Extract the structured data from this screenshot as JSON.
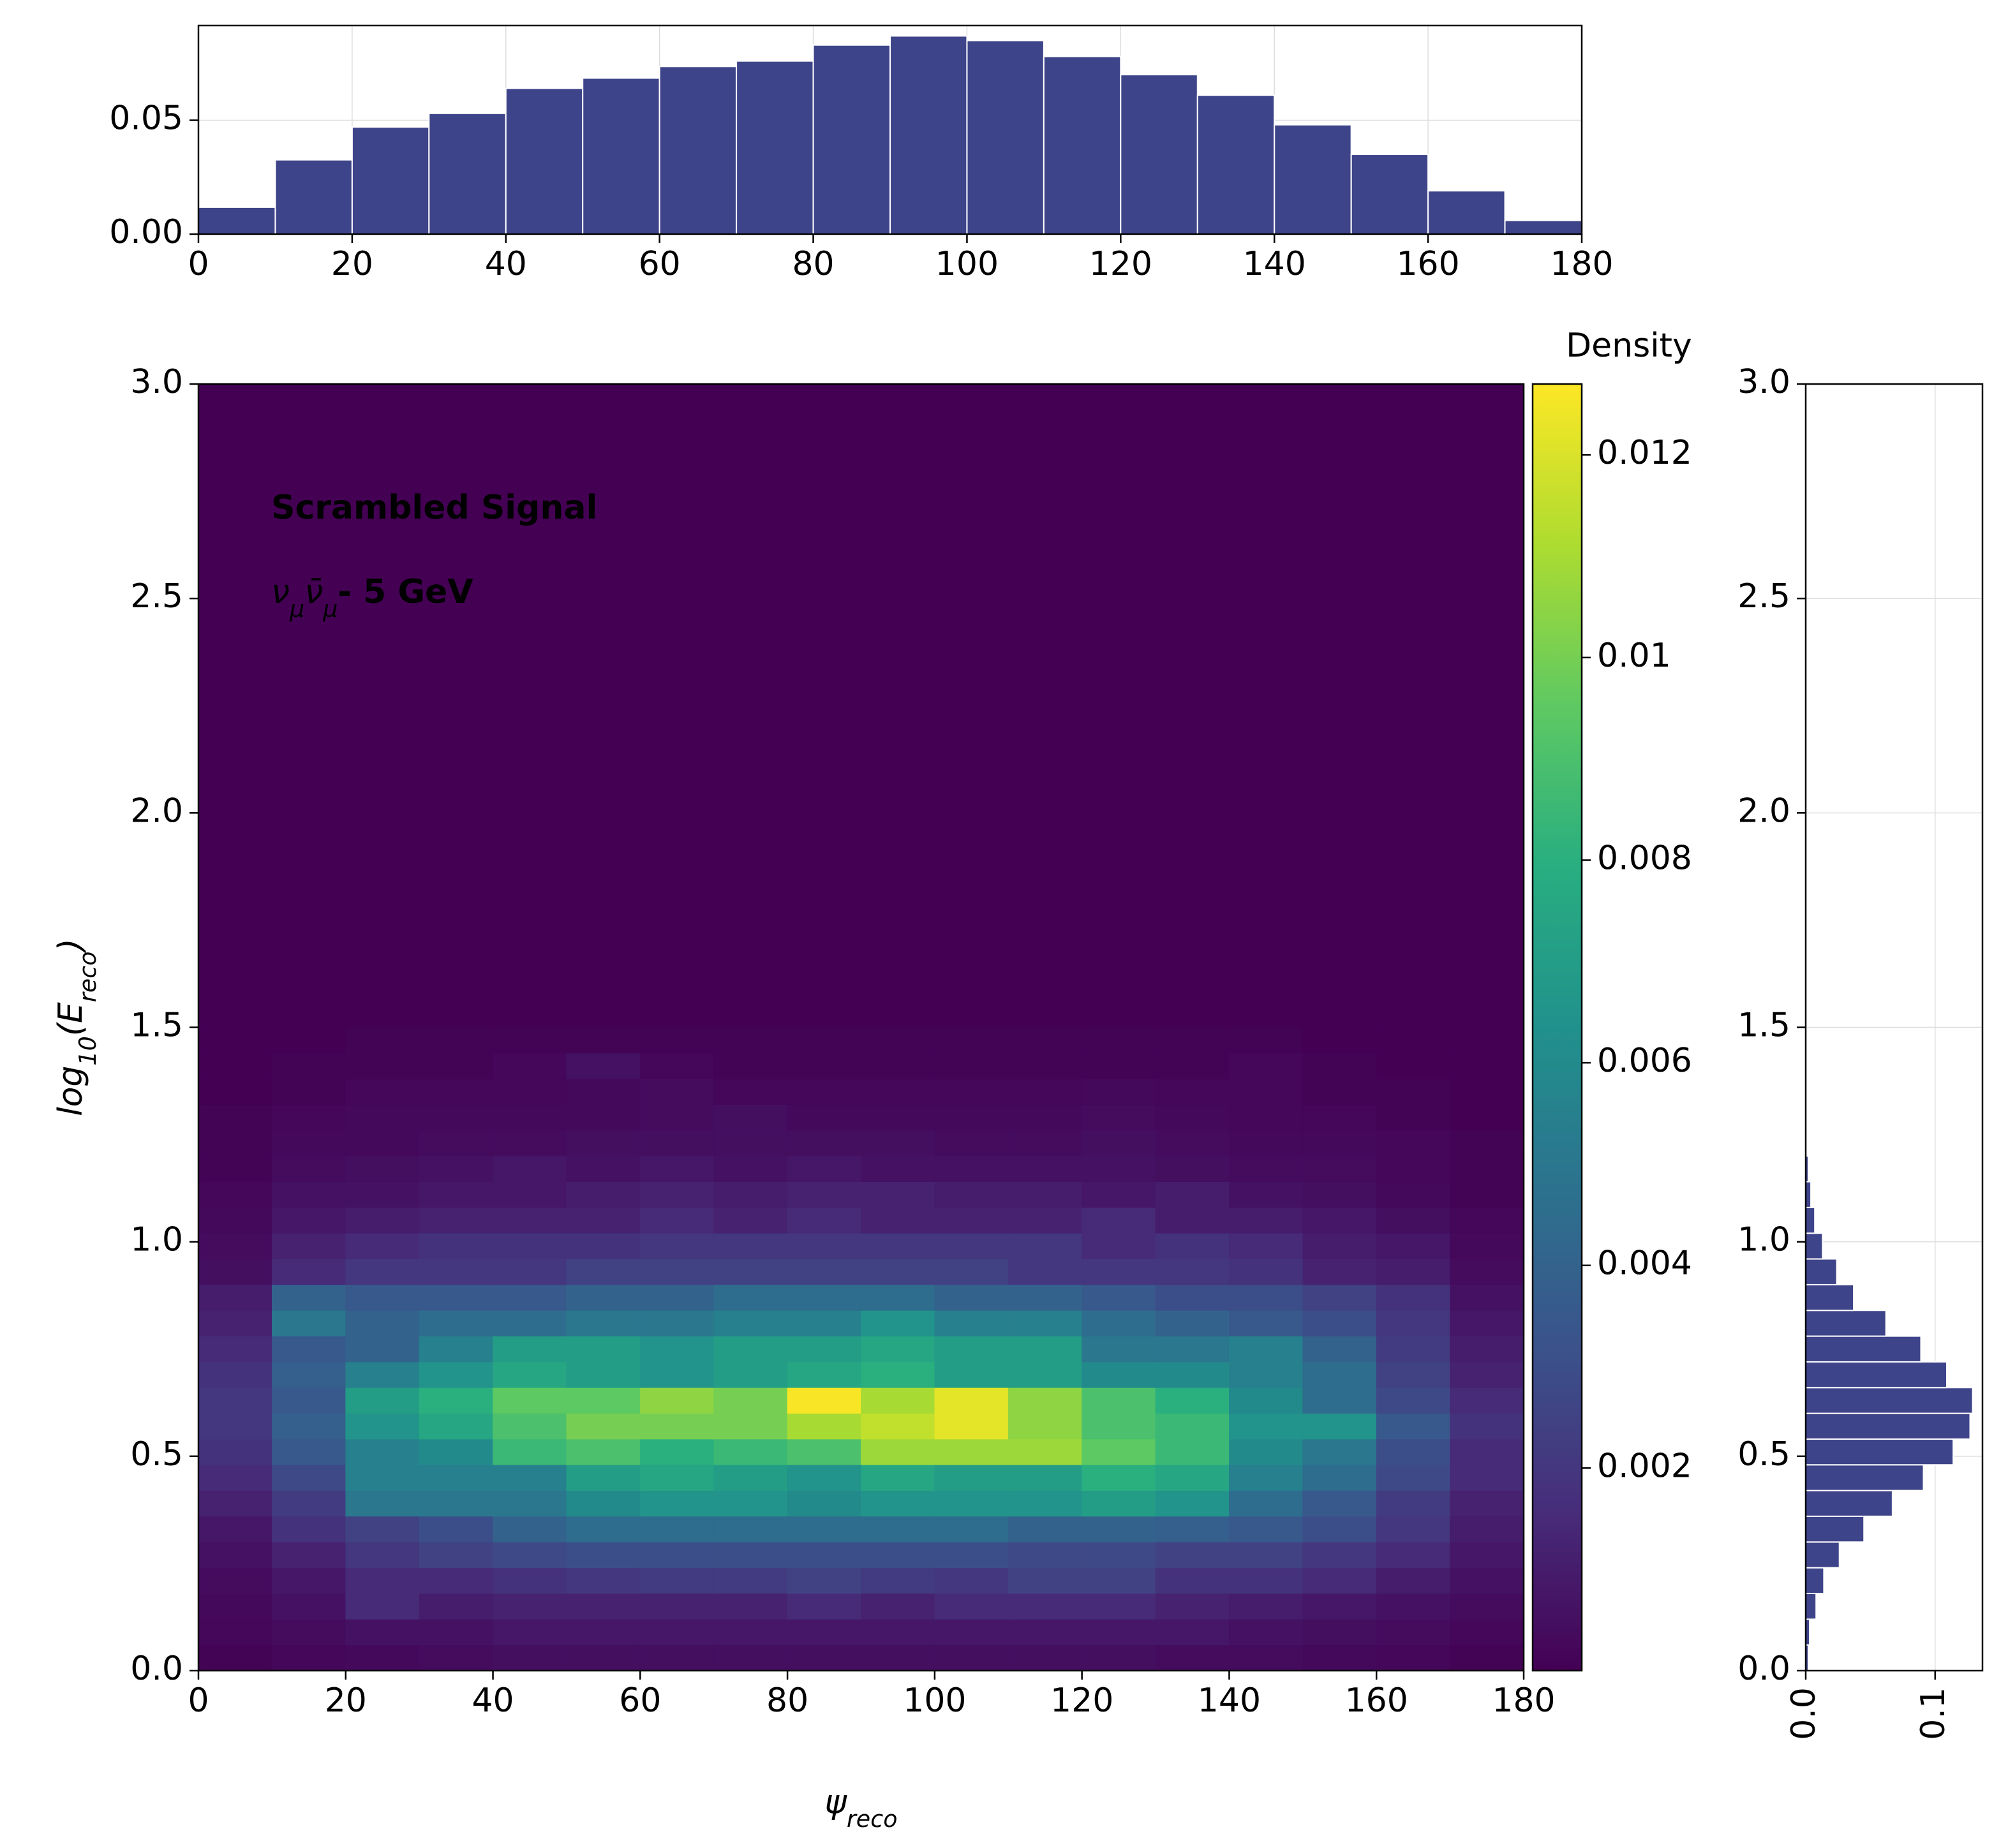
{
  "chart_data": [
    {
      "type": "heatmap",
      "title": "Scrambled Signal",
      "subtitle": [
        {
          "text": "ν",
          "math": true
        },
        {
          "text": "μ",
          "math": true,
          "sub": true
        },
        {
          "text": "ν̄",
          "math": true
        },
        {
          "text": "μ",
          "math": true,
          "sub": true
        },
        {
          "text": "- 5 GeV"
        }
      ],
      "xlabel": [
        {
          "text": "ψ"
        },
        {
          "text": "reco",
          "sub": true
        }
      ],
      "ylabel": [
        {
          "text": "log"
        },
        {
          "text": "10",
          "sub": true
        },
        {
          "text": "(E"
        },
        {
          "text": "reco",
          "sub": true
        },
        {
          "text": ")"
        }
      ],
      "xbins": [
        0,
        10,
        20,
        30,
        40,
        50,
        60,
        70,
        80,
        90,
        100,
        110,
        120,
        130,
        140,
        150,
        160,
        170,
        180
      ],
      "ybins": [
        0,
        0.06,
        0.12,
        0.18,
        0.24,
        0.3,
        0.36,
        0.42,
        0.48,
        0.54,
        0.6,
        0.66,
        0.72,
        0.78,
        0.84,
        0.9,
        0.96,
        1.02,
        1.08,
        1.14,
        1.2,
        1.26,
        1.32,
        1.38,
        1.44,
        1.5
      ],
      "z": [
        [
          0.0001,
          0.0002,
          0.0003,
          0.0004,
          0.0005,
          0.0005,
          0.0005,
          0.0005,
          0.0005,
          0.0005,
          0.0005,
          0.0005,
          0.0005,
          0.0004,
          0.0004,
          0.0003,
          0.0002,
          0.0001
        ],
        [
          0.0002,
          0.0004,
          0.0006,
          0.0006,
          0.0008,
          0.0008,
          0.0008,
          0.0008,
          0.0008,
          0.0008,
          0.0008,
          0.0008,
          0.0008,
          0.0008,
          0.0006,
          0.0005,
          0.0004,
          0.0002
        ],
        [
          0.0003,
          0.0006,
          0.0015,
          0.001,
          0.0012,
          0.0012,
          0.0012,
          0.0012,
          0.0015,
          0.0012,
          0.0015,
          0.0015,
          0.0015,
          0.0012,
          0.001,
          0.0008,
          0.0006,
          0.0004
        ],
        [
          0.0004,
          0.0008,
          0.0015,
          0.0015,
          0.0018,
          0.002,
          0.0022,
          0.0022,
          0.0025,
          0.0022,
          0.002,
          0.0025,
          0.0025,
          0.0018,
          0.0018,
          0.0015,
          0.001,
          0.0006
        ],
        [
          0.0006,
          0.0012,
          0.002,
          0.0025,
          0.0028,
          0.003,
          0.003,
          0.003,
          0.003,
          0.003,
          0.003,
          0.0028,
          0.0028,
          0.0025,
          0.0025,
          0.002,
          0.0015,
          0.0008
        ],
        [
          0.0008,
          0.0018,
          0.0025,
          0.003,
          0.004,
          0.0045,
          0.0045,
          0.0045,
          0.0045,
          0.0045,
          0.0045,
          0.004,
          0.004,
          0.0038,
          0.0035,
          0.003,
          0.002,
          0.001
        ],
        [
          0.0012,
          0.0022,
          0.005,
          0.005,
          0.005,
          0.006,
          0.0065,
          0.0065,
          0.006,
          0.0065,
          0.0065,
          0.0065,
          0.007,
          0.0065,
          0.0045,
          0.0035,
          0.0022,
          0.0012
        ],
        [
          0.0015,
          0.0028,
          0.0055,
          0.0055,
          0.0055,
          0.007,
          0.0075,
          0.007,
          0.0065,
          0.0075,
          0.007,
          0.007,
          0.008,
          0.0075,
          0.0055,
          0.0045,
          0.0028,
          0.0015
        ],
        [
          0.0018,
          0.0035,
          0.0055,
          0.006,
          0.0085,
          0.009,
          0.008,
          0.0085,
          0.009,
          0.0108,
          0.0108,
          0.0108,
          0.0095,
          0.0085,
          0.006,
          0.005,
          0.003,
          0.0015
        ],
        [
          0.002,
          0.0038,
          0.0065,
          0.0075,
          0.009,
          0.01,
          0.01,
          0.01,
          0.011,
          0.0115,
          0.0122,
          0.0105,
          0.009,
          0.0085,
          0.0065,
          0.0065,
          0.0035,
          0.0018
        ],
        [
          0.002,
          0.0035,
          0.007,
          0.008,
          0.0095,
          0.0095,
          0.0105,
          0.01,
          0.0126,
          0.011,
          0.0122,
          0.0105,
          0.009,
          0.008,
          0.006,
          0.0045,
          0.0028,
          0.0015
        ],
        [
          0.0018,
          0.0038,
          0.0055,
          0.0065,
          0.0075,
          0.007,
          0.0065,
          0.007,
          0.0075,
          0.008,
          0.007,
          0.007,
          0.006,
          0.006,
          0.0055,
          0.0045,
          0.0025,
          0.0012
        ],
        [
          0.0015,
          0.0035,
          0.004,
          0.0055,
          0.007,
          0.007,
          0.0065,
          0.007,
          0.007,
          0.0075,
          0.007,
          0.007,
          0.005,
          0.005,
          0.0055,
          0.004,
          0.0022,
          0.001
        ],
        [
          0.0012,
          0.005,
          0.004,
          0.0045,
          0.0045,
          0.005,
          0.005,
          0.0055,
          0.0055,
          0.0065,
          0.0055,
          0.0055,
          0.0045,
          0.004,
          0.0035,
          0.003,
          0.002,
          0.0008
        ],
        [
          0.001,
          0.004,
          0.0035,
          0.0035,
          0.0035,
          0.004,
          0.004,
          0.0045,
          0.0045,
          0.0045,
          0.004,
          0.004,
          0.0035,
          0.003,
          0.003,
          0.0025,
          0.0018,
          0.0006
        ],
        [
          0.0005,
          0.0015,
          0.002,
          0.002,
          0.002,
          0.0025,
          0.0025,
          0.0025,
          0.0025,
          0.0025,
          0.0025,
          0.002,
          0.002,
          0.002,
          0.0018,
          0.0012,
          0.001,
          0.0004
        ],
        [
          0.0004,
          0.0012,
          0.0015,
          0.0018,
          0.0018,
          0.0018,
          0.002,
          0.002,
          0.002,
          0.002,
          0.002,
          0.002,
          0.0015,
          0.0018,
          0.0015,
          0.001,
          0.0008,
          0.0003
        ],
        [
          0.0003,
          0.0008,
          0.001,
          0.0012,
          0.0012,
          0.0012,
          0.0015,
          0.0012,
          0.0015,
          0.0012,
          0.0012,
          0.0012,
          0.0015,
          0.001,
          0.001,
          0.0008,
          0.0005,
          0.0002
        ],
        [
          0.0002,
          0.0006,
          0.0006,
          0.0008,
          0.0008,
          0.001,
          0.0012,
          0.001,
          0.0012,
          0.0012,
          0.001,
          0.001,
          0.0008,
          0.001,
          0.0006,
          0.0005,
          0.0003,
          0.0001
        ],
        [
          0.0001,
          0.0004,
          0.0005,
          0.0006,
          0.0008,
          0.0006,
          0.0008,
          0.0006,
          0.0008,
          0.0006,
          0.0006,
          0.0006,
          0.0006,
          0.0005,
          0.0004,
          0.0004,
          0.0002,
          0.0001
        ],
        [
          0.0001,
          0.0003,
          0.0003,
          0.0004,
          0.0004,
          0.0005,
          0.0005,
          0.0005,
          0.0005,
          0.0005,
          0.0004,
          0.0004,
          0.0005,
          0.0004,
          0.0003,
          0.0003,
          0.0002,
          0.0001
        ],
        [
          0.0001,
          0.0002,
          0.0003,
          0.0003,
          0.0003,
          0.0003,
          0.0004,
          0.0005,
          0.0003,
          0.0003,
          0.0003,
          0.0003,
          0.0004,
          0.0003,
          0.0002,
          0.0002,
          0.0001,
          0
        ],
        [
          0,
          0.0001,
          0.0002,
          0.0002,
          0.0002,
          0.0003,
          0.0004,
          0.0002,
          0.0002,
          0.0002,
          0.0002,
          0.0002,
          0.0003,
          0.0002,
          0.0002,
          0.0001,
          0.0001,
          0
        ],
        [
          0,
          0.0001,
          0.0001,
          0.0001,
          0.0002,
          0.0006,
          0.0002,
          0.0001,
          0.0001,
          0.0001,
          0.0001,
          0.0001,
          0.0001,
          0.0001,
          0.0002,
          0.0001,
          0,
          0
        ],
        [
          0,
          0,
          0.0001,
          0.0001,
          0.0001,
          0.0001,
          0.0001,
          0.0001,
          0.0001,
          0.0001,
          0.0001,
          0.0001,
          0.0001,
          0.0001,
          0.0001,
          0,
          0,
          0
        ]
      ],
      "xlim": [
        0,
        180
      ],
      "ylim": [
        0,
        3
      ],
      "xticks": [
        0,
        20,
        40,
        60,
        80,
        100,
        120,
        140,
        160,
        180
      ],
      "yticks": [
        {
          "value": 0,
          "label": "0.0"
        },
        0.5,
        {
          "value": 1,
          "label": "1.0"
        },
        1.5,
        {
          "value": 2,
          "label": "2.0"
        },
        2.5,
        {
          "value": 3,
          "label": "3.0"
        }
      ],
      "colormap": "viridis",
      "clim": [
        0,
        0.0127
      ],
      "colorbar_label": "Density",
      "colorbar_ticks": [
        0.002,
        0.004,
        0.006,
        0.008,
        0.01,
        0.012
      ]
    },
    {
      "type": "histogram",
      "bins": [
        0,
        10,
        20,
        30,
        40,
        50,
        60,
        70,
        80,
        90,
        100,
        110,
        120,
        130,
        140,
        150,
        160,
        170,
        180
      ],
      "values": [
        0.0118,
        0.0326,
        0.047,
        0.053,
        0.064,
        0.0685,
        0.0736,
        0.076,
        0.083,
        0.087,
        0.085,
        0.078,
        0.07,
        0.061,
        0.048,
        0.035,
        0.019,
        0.006
      ],
      "color": "#3e4489",
      "xlim": [
        0,
        180
      ],
      "ylim": [
        0,
        0.0916
      ],
      "xticks": [
        0,
        20,
        40,
        60,
        80,
        100,
        120,
        140,
        160,
        180
      ],
      "yticks": [
        {
          "value": 0,
          "label": "0.00"
        },
        {
          "value": 0.05,
          "label": "0.05"
        }
      ],
      "grid": true
    },
    {
      "type": "histogram",
      "orientation": "horizontal",
      "bins": [
        0,
        0.06,
        0.12,
        0.18,
        0.24,
        0.3,
        0.36,
        0.42,
        0.48,
        0.54,
        0.6,
        0.66,
        0.72,
        0.78,
        0.84,
        0.9,
        0.96,
        1.02,
        1.08,
        1.14,
        1.2,
        1.26,
        1.32,
        1.38,
        1.44,
        1.5
      ],
      "values": [
        0.002,
        0.003,
        0.008,
        0.014,
        0.026,
        0.045,
        0.067,
        0.091,
        0.114,
        0.127,
        0.129,
        0.109,
        0.089,
        0.062,
        0.037,
        0.024,
        0.013,
        0.007,
        0.004,
        0.002,
        0.001,
        0.0005,
        0.0003,
        0.0002,
        0.0001
      ],
      "color": "#3e4489",
      "xlim": [
        0,
        0.1366
      ],
      "ylim": [
        0,
        3
      ],
      "xticks": [
        {
          "value": 0,
          "label": "0.0"
        },
        {
          "value": 0.1,
          "label": "0.1"
        }
      ],
      "yticks": [
        {
          "value": 0,
          "label": "0.0"
        },
        0.5,
        {
          "value": 1,
          "label": "1.0"
        },
        1.5,
        {
          "value": 2,
          "label": "2.0"
        },
        2.5,
        {
          "value": 3,
          "label": "3.0"
        }
      ],
      "grid": true
    }
  ]
}
